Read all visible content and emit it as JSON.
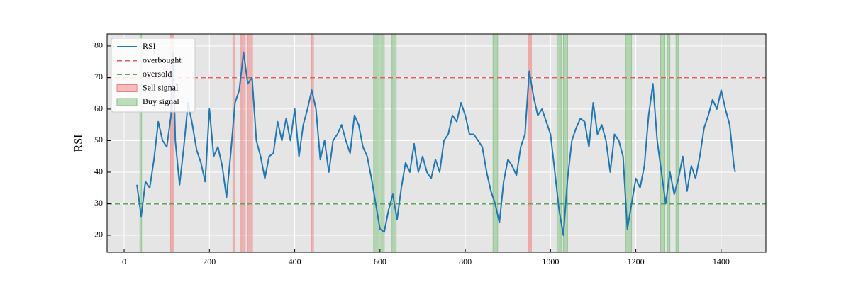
{
  "chart_data": {
    "type": "line",
    "ylabel": "RSI",
    "xlim": [
      -40,
      1505
    ],
    "ylim": [
      14.6,
      83.8
    ],
    "xticks": [
      0,
      200,
      400,
      600,
      800,
      1000,
      1200,
      1400
    ],
    "yticks": [
      20,
      30,
      40,
      50,
      60,
      70,
      80
    ],
    "grid": true,
    "legend": "upper left",
    "series": [
      {
        "name": "RSI",
        "color": "#1f77b4",
        "x": [
          30,
          40,
          50,
          60,
          70,
          80,
          90,
          100,
          110,
          115,
          120,
          130,
          140,
          150,
          160,
          170,
          180,
          190,
          200,
          210,
          220,
          230,
          240,
          250,
          260,
          270,
          280,
          290,
          300,
          310,
          320,
          330,
          340,
          350,
          360,
          370,
          380,
          390,
          400,
          410,
          420,
          430,
          440,
          450,
          460,
          470,
          480,
          490,
          500,
          510,
          520,
          530,
          540,
          550,
          560,
          570,
          580,
          590,
          600,
          610,
          620,
          630,
          640,
          650,
          660,
          670,
          680,
          690,
          700,
          710,
          720,
          730,
          740,
          750,
          760,
          770,
          780,
          790,
          800,
          810,
          820,
          830,
          840,
          850,
          860,
          870,
          880,
          890,
          900,
          910,
          920,
          930,
          940,
          950,
          960,
          970,
          980,
          990,
          1000,
          1010,
          1020,
          1030,
          1040,
          1050,
          1060,
          1070,
          1080,
          1090,
          1100,
          1110,
          1120,
          1130,
          1140,
          1150,
          1160,
          1170,
          1180,
          1190,
          1200,
          1210,
          1220,
          1230,
          1240,
          1250,
          1260,
          1270,
          1280,
          1290,
          1300,
          1310,
          1320,
          1330,
          1340,
          1350,
          1360,
          1370,
          1380,
          1390,
          1400,
          1410,
          1420,
          1430,
          1433
        ],
        "values": [
          36,
          26,
          37,
          35,
          44,
          56,
          50,
          48,
          58,
          78,
          50,
          36,
          48,
          62,
          55,
          47,
          43,
          37,
          60,
          45,
          48,
          42,
          32,
          46,
          62,
          66,
          78,
          68,
          70,
          50,
          45,
          38,
          45,
          46,
          56,
          50,
          57,
          50,
          60,
          45,
          55,
          60,
          66,
          60,
          44,
          50,
          40,
          50,
          52,
          55,
          50,
          46,
          58,
          55,
          48,
          45,
          38,
          30,
          22,
          21,
          28,
          33,
          25,
          35,
          43,
          40,
          49,
          40,
          45,
          40,
          38,
          44,
          40,
          50,
          52,
          58,
          56,
          62,
          58,
          52,
          52,
          50,
          48,
          40,
          34,
          30,
          24,
          37,
          44,
          42,
          39,
          48,
          52,
          72,
          64,
          58,
          60,
          56,
          52,
          40,
          28,
          20,
          38,
          50,
          54,
          57,
          56,
          48,
          62,
          52,
          55,
          50,
          40,
          52,
          50,
          45,
          22,
          30,
          38,
          35,
          42,
          58,
          68,
          50,
          40,
          30,
          40,
          33,
          38,
          45,
          34,
          42,
          38,
          45,
          54,
          58,
          63,
          60,
          66,
          60,
          55,
          42,
          40
        ]
      }
    ],
    "hlines": [
      {
        "name": "overbought",
        "value": 70,
        "color": "#e8595b"
      },
      {
        "name": "oversold",
        "value": 30,
        "color": "#5aa55a"
      }
    ],
    "spans": [
      {
        "name": "Sell signal",
        "color": "#f08080",
        "ranges": [
          [
            109,
            115
          ],
          [
            255,
            260
          ],
          [
            274,
            284
          ],
          [
            289,
            301
          ],
          [
            439,
            444
          ],
          [
            949,
            955
          ]
        ]
      },
      {
        "name": "Buy signal",
        "color": "#7fbf7f",
        "ranges": [
          [
            37,
            41
          ],
          [
            585,
            610
          ],
          [
            628,
            638
          ],
          [
            865,
            876
          ],
          [
            1015,
            1025
          ],
          [
            1030,
            1040
          ],
          [
            1176,
            1190
          ],
          [
            1258,
            1268
          ],
          [
            1274,
            1280
          ],
          [
            1294,
            1300
          ]
        ]
      }
    ]
  }
}
